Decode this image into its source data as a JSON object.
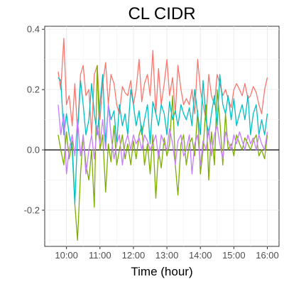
{
  "chart_data": {
    "type": "line",
    "title": "CL CIDR",
    "xlabel": "Time (hour)",
    "ylabel": "",
    "x_tick_labels": [
      "10:00",
      "11:00",
      "12:00",
      "13:00",
      "14:00",
      "15:00",
      "16:00"
    ],
    "x_ticks": [
      10,
      11,
      12,
      13,
      14,
      15,
      16
    ],
    "y_tick_labels": [
      "-0.2",
      "0.0",
      "0.2",
      "0.4"
    ],
    "y_ticks": [
      -0.2,
      0.0,
      0.2,
      0.4
    ],
    "xlim": [
      9.35,
      16.35
    ],
    "ylim": [
      -0.32,
      0.41
    ],
    "grid": true,
    "legend": "none",
    "reference_line_y": 0.0,
    "series": [
      {
        "color": "#F8766D",
        "x": [
          9.75,
          9.83,
          9.92,
          10.0,
          10.08,
          10.17,
          10.25,
          10.33,
          10.42,
          10.5,
          10.58,
          10.67,
          10.75,
          10.83,
          10.92,
          11.0,
          11.08,
          11.17,
          11.25,
          11.33,
          11.42,
          11.5,
          11.58,
          11.67,
          11.75,
          11.83,
          11.92,
          12.0,
          12.08,
          12.17,
          12.25,
          12.33,
          12.42,
          12.5,
          12.58,
          12.67,
          12.75,
          12.83,
          12.92,
          13.0,
          13.08,
          13.17,
          13.25,
          13.33,
          13.42,
          13.5,
          13.58,
          13.67,
          13.75,
          13.83,
          13.92,
          14.0,
          14.08,
          14.17,
          14.25,
          14.33,
          14.42,
          14.5,
          14.58,
          14.67,
          14.75,
          14.83,
          14.92,
          15.0,
          15.08,
          15.17,
          15.25,
          15.33,
          15.42,
          15.5,
          15.58,
          15.67,
          15.75,
          15.83,
          15.92,
          16.0
        ],
        "values": [
          0.26,
          0.2,
          0.37,
          0.15,
          0.18,
          0.08,
          0.22,
          0.06,
          0.25,
          0.28,
          0.18,
          0.2,
          0.05,
          0.25,
          0.28,
          0.1,
          0.22,
          0.29,
          0.15,
          0.25,
          0.22,
          0.15,
          0.12,
          0.21,
          0.19,
          0.18,
          0.23,
          0.15,
          0.2,
          0.3,
          0.16,
          0.22,
          0.25,
          0.18,
          0.33,
          0.12,
          0.27,
          0.15,
          0.22,
          0.3,
          0.18,
          0.24,
          0.12,
          0.28,
          0.2,
          0.15,
          0.17,
          0.15,
          0.2,
          0.12,
          0.3,
          0.2,
          0.15,
          0.1,
          0.25,
          0.18,
          0.15,
          0.25,
          0.22,
          0.18,
          0.2,
          0.17,
          0.14,
          0.2,
          0.22,
          0.2,
          0.18,
          0.22,
          0.17,
          0.18,
          0.21,
          0.19,
          0.15,
          0.12,
          0.2,
          0.24
        ]
      },
      {
        "color": "#7CAE00",
        "x": [
          9.75,
          9.83,
          9.92,
          10.0,
          10.08,
          10.17,
          10.25,
          10.33,
          10.42,
          10.5,
          10.58,
          10.67,
          10.75,
          10.83,
          10.92,
          11.0,
          11.08,
          11.17,
          11.25,
          11.33,
          11.42,
          11.5,
          11.58,
          11.67,
          11.75,
          11.83,
          11.92,
          12.0,
          12.08,
          12.17,
          12.25,
          12.33,
          12.42,
          12.5,
          12.58,
          12.67,
          12.75,
          12.83,
          12.92,
          13.0,
          13.08,
          13.17,
          13.25,
          13.33,
          13.42,
          13.5,
          13.58,
          13.67,
          13.75,
          13.83,
          13.92,
          14.0,
          14.08,
          14.17,
          14.25,
          14.33,
          14.42,
          14.5,
          14.58,
          14.67,
          14.75,
          14.83,
          14.92,
          15.0,
          15.08,
          15.17,
          15.25,
          15.33,
          15.42,
          15.5,
          15.58,
          15.67,
          15.75,
          15.83,
          15.92,
          16.0
        ],
        "values": [
          0.05,
          0.0,
          -0.05,
          0.06,
          -0.03,
          0.03,
          -0.18,
          -0.3,
          -0.08,
          0.05,
          -0.05,
          -0.1,
          0.0,
          -0.19,
          0.28,
          0.0,
          0.05,
          -0.14,
          0.02,
          -0.04,
          0.08,
          -0.05,
          0.0,
          0.05,
          -0.03,
          0.02,
          -0.05,
          0.03,
          -0.03,
          0.05,
          0.08,
          -0.05,
          0.02,
          -0.08,
          0.05,
          -0.16,
          0.0,
          -0.06,
          0.04,
          -0.02,
          0.02,
          0.18,
          -0.05,
          -0.15,
          0.02,
          0.05,
          -0.05,
          0.02,
          0.04,
          -0.02,
          0.13,
          -0.08,
          0.0,
          0.15,
          -0.1,
          0.06,
          -0.05,
          0.2,
          0.1,
          -0.05,
          0.12,
          0.0,
          0.02,
          -0.02,
          0.05,
          0.02,
          0.0,
          0.04,
          0.02,
          0.0,
          0.03,
          0.05,
          -0.02,
          0.0,
          -0.03,
          0.05
        ]
      },
      {
        "color": "#00BFC4",
        "x": [
          9.75,
          9.83,
          9.92,
          10.0,
          10.08,
          10.17,
          10.25,
          10.33,
          10.42,
          10.5,
          10.58,
          10.67,
          10.75,
          10.83,
          10.92,
          11.0,
          11.08,
          11.17,
          11.25,
          11.33,
          11.42,
          11.5,
          11.58,
          11.67,
          11.75,
          11.83,
          11.92,
          12.0,
          12.08,
          12.17,
          12.25,
          12.33,
          12.42,
          12.5,
          12.58,
          12.67,
          12.75,
          12.83,
          12.92,
          13.0,
          13.08,
          13.17,
          13.25,
          13.33,
          13.42,
          13.5,
          13.58,
          13.67,
          13.75,
          13.83,
          13.92,
          14.0,
          14.08,
          14.17,
          14.25,
          14.33,
          14.42,
          14.5,
          14.58,
          14.67,
          14.75,
          14.83,
          14.92,
          15.0,
          15.08,
          15.17,
          15.25,
          15.33,
          15.42,
          15.5,
          15.58,
          15.67,
          15.75,
          15.83,
          15.92,
          16.0
        ],
        "values": [
          0.24,
          0.23,
          0.05,
          0.12,
          0.05,
          0.0,
          -0.18,
          0.05,
          0.23,
          0.15,
          0.05,
          0.1,
          0.22,
          0.12,
          0.05,
          0.15,
          0.25,
          0.02,
          0.15,
          0.1,
          0.13,
          0.02,
          0.15,
          0.08,
          0.12,
          0.05,
          0.2,
          0.15,
          0.08,
          0.13,
          0.05,
          0.1,
          0.15,
          0.02,
          0.16,
          0.12,
          0.08,
          0.15,
          0.12,
          0.05,
          0.16,
          0.1,
          0.13,
          0.08,
          0.15,
          0.12,
          0.1,
          0.14,
          0.08,
          0.2,
          0.12,
          0.05,
          0.23,
          0.1,
          0.05,
          0.12,
          0.18,
          0.08,
          0.25,
          0.15,
          0.12,
          0.18,
          0.1,
          0.17,
          0.08,
          0.12,
          0.15,
          0.1,
          0.18,
          0.05,
          0.12,
          0.15,
          0.05,
          0.1,
          0.05,
          0.12
        ]
      },
      {
        "color": "#C77CFF",
        "x": [
          9.75,
          9.83,
          9.92,
          10.0,
          10.08,
          10.17,
          10.25,
          10.33,
          10.42,
          10.5,
          10.58,
          10.67,
          10.75,
          10.83,
          10.92,
          11.0,
          11.08,
          11.17,
          11.25,
          11.33,
          11.42,
          11.5,
          11.58,
          11.67,
          11.75,
          11.83,
          11.92,
          12.0,
          12.08,
          12.17,
          12.25,
          12.33,
          12.42,
          12.5,
          12.58,
          12.67,
          12.75,
          12.83,
          12.92,
          13.0,
          13.08,
          13.17,
          13.25,
          13.33,
          13.42,
          13.5,
          13.58,
          13.67,
          13.75,
          13.83,
          13.92,
          14.0,
          14.08,
          14.17,
          14.25,
          14.33,
          14.42,
          14.5,
          14.58,
          14.67,
          14.75,
          14.83,
          14.92,
          15.0,
          15.08,
          15.17,
          15.25,
          15.33,
          15.42,
          15.5,
          15.58,
          15.67,
          15.75,
          15.83,
          15.92,
          16.0
        ],
        "values": [
          0.15,
          0.05,
          0.12,
          -0.08,
          0.0,
          0.05,
          -0.02,
          0.1,
          -0.02,
          0.05,
          -0.08,
          0.0,
          0.05,
          -0.03,
          0.08,
          0.02,
          0.1,
          0.0,
          0.15,
          0.05,
          -0.03,
          0.02,
          0.05,
          -0.05,
          0.02,
          0.05,
          0.0,
          0.05,
          0.02,
          0.04,
          0.0,
          0.05,
          0.03,
          0.0,
          0.02,
          0.05,
          -0.03,
          0.05,
          0.02,
          0.0,
          0.07,
          0.02,
          -0.05,
          0.03,
          0.05,
          -0.02,
          0.0,
          0.05,
          -0.08,
          0.02,
          0.05,
          -0.05,
          0.03,
          0.0,
          0.07,
          -0.02,
          0.05,
          0.08,
          0.02,
          -0.03,
          0.06,
          0.03,
          0.0,
          0.05,
          0.02,
          0.06,
          0.03,
          0.0,
          0.05,
          0.02,
          0.04,
          0.0,
          0.05,
          0.02,
          0.0,
          0.06
        ]
      }
    ]
  }
}
